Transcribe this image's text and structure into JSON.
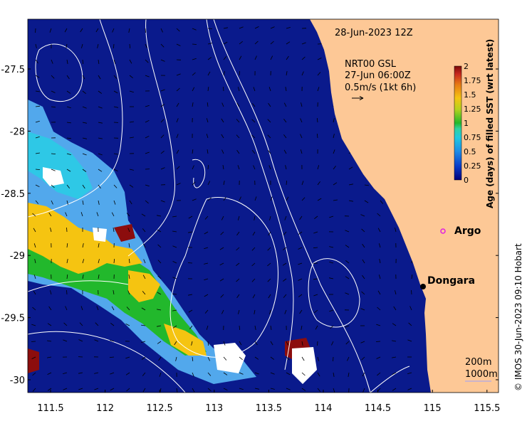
{
  "map": {
    "timestamp": "28-Jun-2023 12Z",
    "product": "NRT00 GSL",
    "current_time": "27-Jun 06:00Z",
    "vector_scale": "0.5m/s (1kt 6h)",
    "places": [
      {
        "name": "Dongara",
        "lon": 114.92,
        "lat": -29.26
      },
      {
        "name": "Argo",
        "lon": 115.08,
        "lat": -28.9
      }
    ],
    "contour_legend": [
      "200m",
      "1000m"
    ],
    "credit": "© IMOS 30-Jun-2023 09:10 Hobart",
    "x_ticks": [
      "111.5",
      "112",
      "112.5",
      "113",
      "113.5",
      "114",
      "114.5",
      "115",
      "115.5"
    ],
    "y_ticks": [
      "-27.5",
      "-28",
      "-28.5",
      "-29",
      "-29.5",
      "-30"
    ],
    "colorbar": {
      "title": "Age (days) of filled SST (wrt latest)",
      "ticks": [
        "0",
        "0.25",
        "0.5",
        "0.75",
        "1",
        "1.25",
        "1.5",
        "1.75",
        "2"
      ],
      "range": [
        0,
        2
      ]
    },
    "colors": {
      "ocean_deep": "#0a1a8c",
      "land": "#fdc896",
      "light_blue": "#52a8ec",
      "cyan": "#2ec8e6",
      "green": "#22b82c",
      "yellow": "#f5c411",
      "dark_red": "#8c0d0d",
      "argo_marker": "#e020e0"
    }
  }
}
